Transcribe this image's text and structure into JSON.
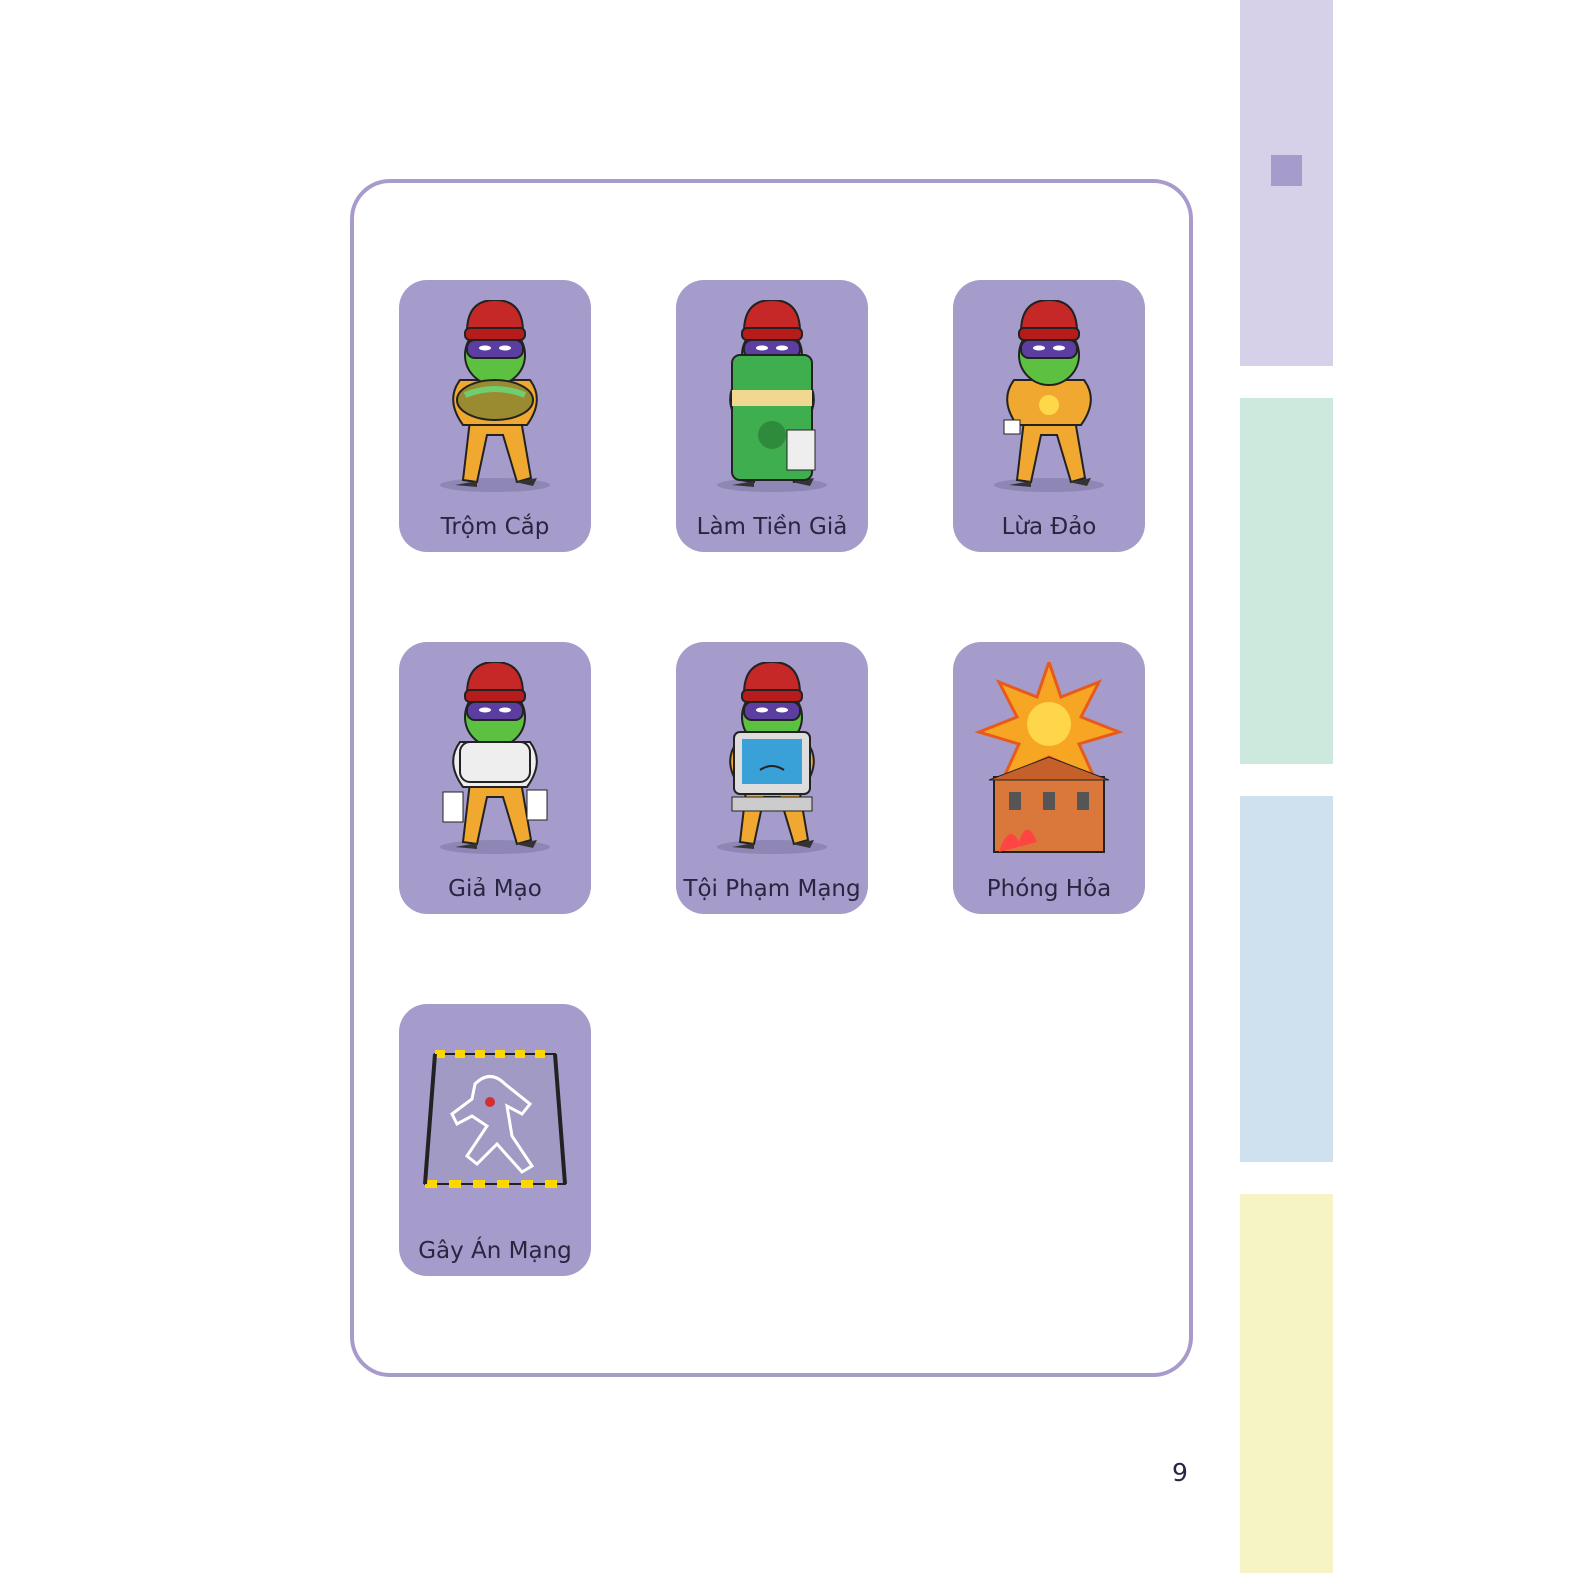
{
  "cards": [
    {
      "label": "Trộm Cắp",
      "icon": "thief-with-money-bag-icon"
    },
    {
      "label": "Làm Tiền Giả",
      "icon": "counterfeit-money-icon"
    },
    {
      "label": "Lừa Đảo",
      "icon": "scammer-icon"
    },
    {
      "label": "Giả Mạo",
      "icon": "forger-icon"
    },
    {
      "label": "Tội Phạm Mạng",
      "icon": "cyber-criminal-icon"
    },
    {
      "label": "Phóng Hỏa",
      "icon": "burning-house-icon"
    },
    {
      "label": "Gây Án Mạng",
      "icon": "crime-scene-icon"
    }
  ],
  "side_tabs": [
    {
      "color": "#d6d1e8"
    },
    {
      "color": "#cde8dc"
    },
    {
      "color": "#cfe0ee"
    },
    {
      "color": "#f6f4c4"
    }
  ],
  "colors": {
    "accent": "#a59ccb",
    "frame": "#a89bcc"
  },
  "page_number": "9"
}
